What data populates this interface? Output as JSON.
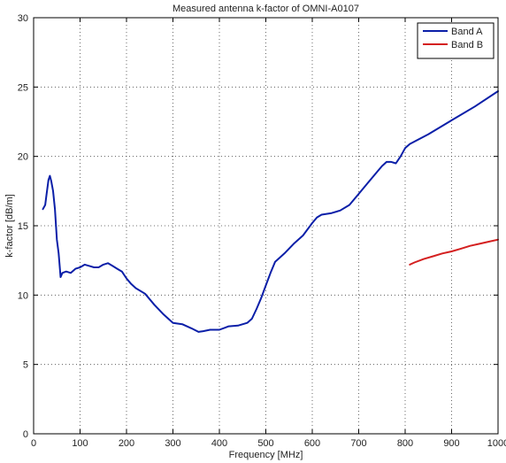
{
  "chart_data": {
    "type": "line",
    "title": "Measured antenna k-factor of OMNI-A0107",
    "xlabel": "Frequency [MHz]",
    "ylabel": "k-factor [dB/m]",
    "xlim": [
      0,
      1000
    ],
    "ylim": [
      0,
      30
    ],
    "xticks": [
      0,
      100,
      200,
      300,
      400,
      500,
      600,
      700,
      800,
      900,
      1000
    ],
    "yticks": [
      0,
      5,
      10,
      15,
      20,
      25,
      30
    ],
    "grid": true,
    "legend_position": "top-right",
    "series": [
      {
        "name": "Band A",
        "color": "#0b1fa8",
        "x": [
          20,
          25,
          28,
          32,
          35,
          38,
          42,
          46,
          50,
          54,
          58,
          62,
          70,
          80,
          90,
          100,
          110,
          120,
          130,
          140,
          150,
          160,
          170,
          180,
          190,
          200,
          210,
          220,
          240,
          260,
          280,
          300,
          320,
          340,
          355,
          365,
          380,
          400,
          420,
          440,
          460,
          470,
          480,
          490,
          500,
          510,
          520,
          530,
          540,
          560,
          580,
          600,
          610,
          620,
          640,
          660,
          680,
          700,
          720,
          740,
          750,
          760,
          770,
          780,
          790,
          800,
          810,
          850,
          900,
          950,
          1000
        ],
        "y": [
          16.2,
          16.5,
          17.3,
          18.3,
          18.6,
          18.2,
          17.5,
          16.2,
          14.0,
          13.0,
          11.3,
          11.6,
          11.7,
          11.6,
          11.9,
          12.0,
          12.2,
          12.1,
          12.0,
          12.0,
          12.2,
          12.3,
          12.1,
          11.9,
          11.7,
          11.2,
          10.8,
          10.5,
          10.1,
          9.3,
          8.6,
          8.0,
          7.9,
          7.6,
          7.35,
          7.4,
          7.5,
          7.5,
          7.75,
          7.8,
          8.0,
          8.3,
          9.0,
          9.8,
          10.7,
          11.6,
          12.4,
          12.7,
          13.0,
          13.7,
          14.3,
          15.2,
          15.6,
          15.8,
          15.9,
          16.1,
          16.5,
          17.3,
          18.1,
          18.9,
          19.3,
          19.6,
          19.6,
          19.5,
          20.0,
          20.6,
          20.9,
          21.6,
          22.6,
          23.6,
          24.7
        ]
      },
      {
        "name": "Band B",
        "color": "#d42020",
        "x": [
          810,
          820,
          840,
          860,
          880,
          900,
          920,
          940,
          960,
          980,
          1000
        ],
        "y": [
          12.2,
          12.35,
          12.6,
          12.8,
          13.0,
          13.15,
          13.35,
          13.55,
          13.7,
          13.85,
          14.0
        ]
      }
    ]
  }
}
